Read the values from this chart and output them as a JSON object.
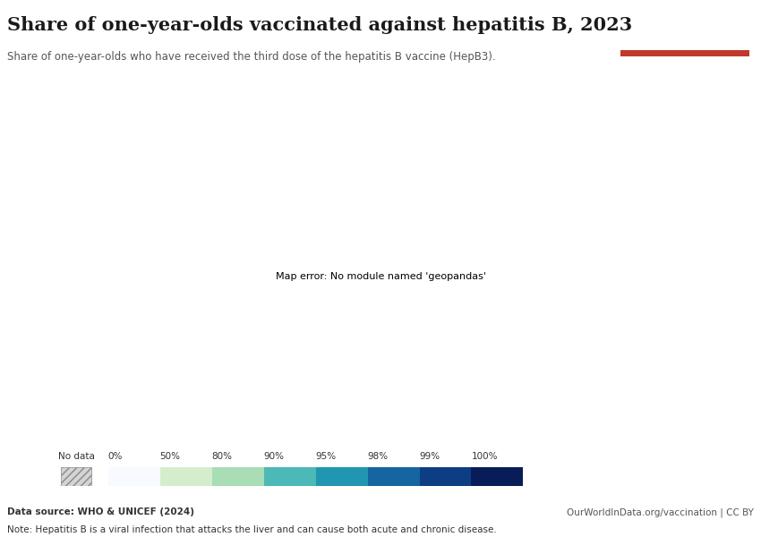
{
  "title": "Share of one-year-olds vaccinated against hepatitis B, 2023",
  "subtitle": "Share of one-year-olds who have received the third dose of the hepatitis B vaccine (HepB3).",
  "data_source": "Data source: WHO & UNICEF (2024)",
  "url": "OurWorldInData.org/vaccination | CC BY",
  "note": "Note: Hepatitis B is a viral infection that attacks the liver and can cause both acute and chronic disease.",
  "owid_box_color": "#1a3a5c",
  "owid_box_accent": "#c0392b",
  "background_color": "#ffffff",
  "legend_labels": [
    "No data",
    "0%",
    "50%",
    "80%",
    "90%",
    "95%",
    "98%",
    "99%",
    "100%"
  ],
  "colormap_colors": [
    "#f7fbff",
    "#d4eecc",
    "#a8ddb5",
    "#4db8b8",
    "#2196b0",
    "#1565a0",
    "#0d3d82",
    "#081d58"
  ],
  "colormap_values": [
    0,
    50,
    80,
    90,
    95,
    98,
    99,
    100
  ],
  "no_data_color": "#d4d4d4",
  "map_background": "#c8e6f0"
}
